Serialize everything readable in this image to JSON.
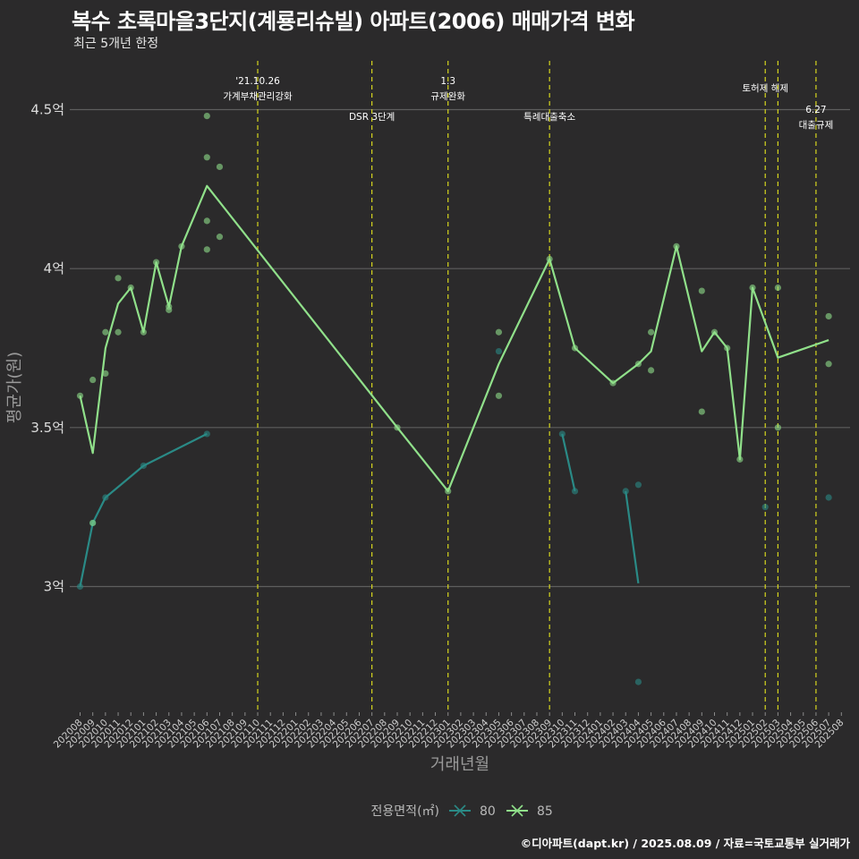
{
  "header": {
    "title": "복수 초록마을3단지(계룡리슈빌) 아파트(2006) 매매가격 변화",
    "subtitle": "최근 5개년 한정"
  },
  "caption": "©디아파트(dapt.kr) / 2025.08.09 / 자료=국토교통부 실거래가",
  "colors": {
    "s80": "#2a8a86",
    "s85": "#90e08a",
    "event": "#d6d61e",
    "grid": "#5e5e5e"
  },
  "chart_data": {
    "type": "line",
    "xlabel": "거래년월",
    "ylabel": "평균가(원)",
    "ylim": [
      2.6,
      4.65
    ],
    "yticks": [
      {
        "v": 3.0,
        "label": "3억"
      },
      {
        "v": 3.5,
        "label": "3.5억"
      },
      {
        "v": 4.0,
        "label": "4억"
      },
      {
        "v": 4.5,
        "label": "4.5억"
      }
    ],
    "x_months": [
      "202008",
      "202009",
      "202010",
      "202011",
      "202012",
      "202101",
      "202102",
      "202103",
      "202104",
      "202105",
      "202106",
      "202107",
      "202108",
      "202109",
      "202110",
      "202111",
      "202112",
      "202201",
      "202202",
      "202203",
      "202204",
      "202205",
      "202206",
      "202207",
      "202208",
      "202209",
      "202210",
      "202211",
      "202212",
      "202301",
      "202302",
      "202303",
      "202304",
      "202305",
      "202306",
      "202307",
      "202308",
      "202309",
      "202310",
      "202311",
      "202312",
      "202401",
      "202402",
      "202403",
      "202404",
      "202405",
      "202406",
      "202407",
      "202408",
      "202409",
      "202410",
      "202411",
      "202412",
      "202501",
      "202502",
      "202503",
      "202504",
      "202505",
      "202506",
      "202507",
      "202508"
    ],
    "legend": {
      "title": "전용면적(㎡)",
      "placement": "bottom"
    },
    "series": [
      {
        "name": "80",
        "color_key": "s80",
        "segments": [
          [
            [
              "202008",
              3.0
            ],
            [
              "202009",
              3.2
            ],
            [
              "202010",
              3.28
            ],
            [
              "202101",
              3.38
            ],
            [
              "202106",
              3.48
            ]
          ],
          [
            [
              "202310",
              3.48
            ],
            [
              "202311",
              3.3
            ]
          ],
          [
            [
              "202403",
              3.3
            ],
            [
              "202404",
              3.01
            ]
          ]
        ],
        "points": [
          [
            "202008",
            3.0
          ],
          [
            "202009",
            3.2
          ],
          [
            "202010",
            3.28
          ],
          [
            "202101",
            3.38
          ],
          [
            "202106",
            3.48
          ],
          [
            "202305",
            3.74
          ],
          [
            "202310",
            3.48
          ],
          [
            "202311",
            3.3
          ],
          [
            "202403",
            3.3
          ],
          [
            "202404",
            3.32
          ],
          [
            "202404",
            2.7
          ],
          [
            "202502",
            3.25
          ],
          [
            "202507",
            3.28
          ]
        ]
      },
      {
        "name": "85",
        "color_key": "s85",
        "segments": [
          [
            [
              "202008",
              3.6
            ],
            [
              "202009",
              3.42
            ],
            [
              "202010",
              3.75
            ],
            [
              "202011",
              3.89
            ],
            [
              "202012",
              3.94
            ],
            [
              "202101",
              3.8
            ],
            [
              "202102",
              4.02
            ],
            [
              "202103",
              3.88
            ],
            [
              "202104",
              4.07
            ],
            [
              "202106",
              4.26
            ],
            [
              "202209",
              3.5
            ],
            [
              "202301",
              3.3
            ],
            [
              "202305",
              3.7
            ],
            [
              "202309",
              4.03
            ],
            [
              "202311",
              3.75
            ],
            [
              "202402",
              3.64
            ],
            [
              "202404",
              3.7
            ],
            [
              "202405",
              3.74
            ],
            [
              "202407",
              4.07
            ],
            [
              "202409",
              3.74
            ],
            [
              "202410",
              3.8
            ],
            [
              "202411",
              3.75
            ],
            [
              "202412",
              3.4
            ],
            [
              "202501",
              3.94
            ],
            [
              "202503",
              3.72
            ],
            [
              "202507",
              3.775
            ]
          ]
        ],
        "points": [
          [
            "202008",
            3.6
          ],
          [
            "202009",
            3.65
          ],
          [
            "202009",
            3.2
          ],
          [
            "202010",
            3.8
          ],
          [
            "202010",
            3.67
          ],
          [
            "202011",
            3.97
          ],
          [
            "202011",
            3.8
          ],
          [
            "202012",
            3.94
          ],
          [
            "202101",
            3.8
          ],
          [
            "202102",
            4.02
          ],
          [
            "202103",
            3.87
          ],
          [
            "202103",
            3.88
          ],
          [
            "202104",
            4.07
          ],
          [
            "202106",
            4.48
          ],
          [
            "202106",
            4.35
          ],
          [
            "202106",
            4.15
          ],
          [
            "202106",
            4.06
          ],
          [
            "202107",
            4.32
          ],
          [
            "202107",
            4.1
          ],
          [
            "202209",
            3.5
          ],
          [
            "202301",
            3.3
          ],
          [
            "202305",
            3.8
          ],
          [
            "202305",
            3.6
          ],
          [
            "202309",
            4.03
          ],
          [
            "202311",
            3.75
          ],
          [
            "202402",
            3.64
          ],
          [
            "202404",
            3.7
          ],
          [
            "202405",
            3.8
          ],
          [
            "202405",
            3.68
          ],
          [
            "202407",
            4.07
          ],
          [
            "202409",
            3.93
          ],
          [
            "202409",
            3.55
          ],
          [
            "202410",
            3.8
          ],
          [
            "202411",
            3.75
          ],
          [
            "202412",
            3.4
          ],
          [
            "202501",
            3.94
          ],
          [
            "202503",
            3.94
          ],
          [
            "202503",
            3.5
          ],
          [
            "202507",
            3.85
          ],
          [
            "202507",
            3.7
          ]
        ]
      }
    ],
    "events": [
      {
        "x": "202110",
        "lines": [
          "'21.10.26",
          "가계부채관리강화"
        ],
        "row": 0
      },
      {
        "x": "202207",
        "lines": [
          "DSR 3단계"
        ],
        "row": 1
      },
      {
        "x": "202301",
        "lines": [
          "1.3",
          "규제완화"
        ],
        "row": 0
      },
      {
        "x": "202309",
        "lines": [
          "특례대출축소"
        ],
        "row": 1
      },
      {
        "x": "202502",
        "lines": [
          "토허제 해제"
        ],
        "row": 2
      },
      {
        "x": "202503",
        "lines": [],
        "row": 2
      },
      {
        "x": "202506",
        "lines": [
          "6.27",
          "대출규제"
        ],
        "row": 3
      }
    ]
  }
}
